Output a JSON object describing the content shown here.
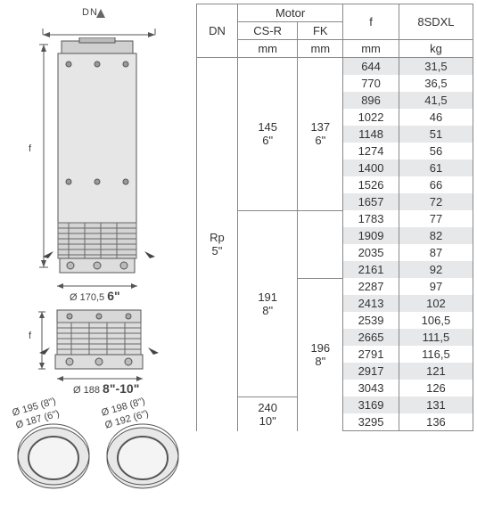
{
  "diagram": {
    "dn_label": "DN",
    "f_label_1": "f",
    "f_label_2": "f",
    "dia1": "Ø 170,5",
    "dia1_bold": "6\"",
    "dia2": "Ø 188",
    "dia2_bold": "8\"-10\"",
    "circ1a": "Ø 195 (8\")",
    "circ1b": "Ø 187 (6\")",
    "circ2a": "Ø 198 (8\")",
    "circ2b": "Ø 192 (6\")"
  },
  "table": {
    "headers": {
      "dn": "DN",
      "motor": "Motor",
      "csr": "CS-R",
      "fk": "FK",
      "mm1": "mm",
      "mm2": "mm",
      "f": "f",
      "mm3": "mm",
      "sdxl": "8SDXL",
      "kg": "kg"
    },
    "dn_val": "Rp 5\"",
    "csr_g1": "145 6\"",
    "fk_g1": "137 6\"",
    "csr_g2": "191 8\"",
    "fk_g2": "196 8\"",
    "csr_g3": "240 10\"",
    "rows": [
      {
        "f": "644",
        "k": "31,5",
        "s": true
      },
      {
        "f": "770",
        "k": "36,5",
        "s": false
      },
      {
        "f": "896",
        "k": "41,5",
        "s": true
      },
      {
        "f": "1022",
        "k": "46",
        "s": false
      },
      {
        "f": "1148",
        "k": "51",
        "s": true
      },
      {
        "f": "1274",
        "k": "56",
        "s": false
      },
      {
        "f": "1400",
        "k": "61",
        "s": true
      },
      {
        "f": "1526",
        "k": "66",
        "s": false
      },
      {
        "f": "1657",
        "k": "72",
        "s": true
      },
      {
        "f": "1783",
        "k": "77",
        "s": false
      },
      {
        "f": "1909",
        "k": "82",
        "s": true
      },
      {
        "f": "2035",
        "k": "87",
        "s": false
      },
      {
        "f": "2161",
        "k": "92",
        "s": true
      },
      {
        "f": "2287",
        "k": "97",
        "s": false
      },
      {
        "f": "2413",
        "k": "102",
        "s": true
      },
      {
        "f": "2539",
        "k": "106,5",
        "s": false
      },
      {
        "f": "2665",
        "k": "111,5",
        "s": true
      },
      {
        "f": "2791",
        "k": "116,5",
        "s": false
      },
      {
        "f": "2917",
        "k": "121",
        "s": true
      },
      {
        "f": "3043",
        "k": "126",
        "s": false
      },
      {
        "f": "3169",
        "k": "131",
        "s": true
      },
      {
        "f": "3295",
        "k": "136",
        "s": false
      }
    ]
  }
}
